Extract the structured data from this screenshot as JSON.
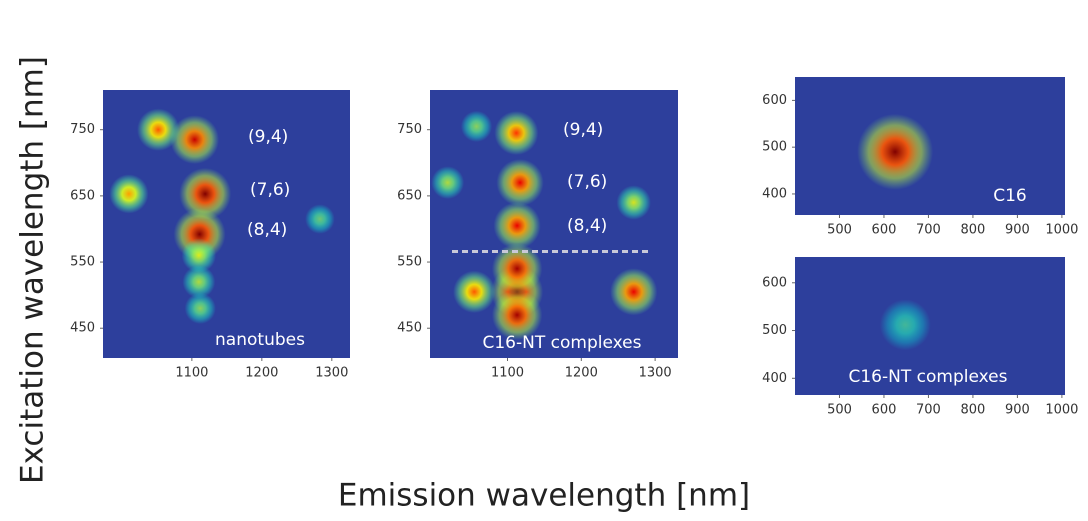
{
  "figure": {
    "xlabel": "Emission wavelength [nm]",
    "ylabel": "Excitation wavelength [nm]"
  },
  "chart_data": [
    {
      "type": "heatmap",
      "title": "nanotubes",
      "background": "#2d3f9c",
      "xlim": [
        973,
        1326
      ],
      "ylim": [
        405,
        810
      ],
      "xticks": [
        1100,
        1200,
        1300
      ],
      "yticks": [
        450,
        550,
        650,
        750
      ],
      "spots": {
        "x": [
          1104,
          1119,
          1111,
          1052,
          1010,
          1283,
          1110,
          1110,
          1112
        ],
        "y": [
          735,
          653,
          592,
          750,
          653,
          615,
          560,
          520,
          480
        ],
        "values": [
          0.9,
          1,
          1,
          0.7,
          0.6,
          0.3,
          0.45,
          0.4,
          0.35
        ]
      },
      "annotations": [
        "(9,4)",
        "(7,6)",
        "(8,4)"
      ]
    },
    {
      "type": "heatmap",
      "title": "C16-NT complexes",
      "background": "#2d3f9c",
      "xlim": [
        995,
        1331
      ],
      "ylim": [
        405,
        810
      ],
      "xticks": [
        1100,
        1200,
        1300
      ],
      "yticks": [
        450,
        550,
        650,
        750
      ],
      "spots": {
        "x": [
          1112,
          1117,
          1113,
          1113,
          1113,
          1113,
          1055,
          1271,
          1271,
          1019,
          1058
        ],
        "y": [
          745,
          670,
          605,
          505,
          470,
          540,
          505,
          505,
          640,
          670,
          755
        ],
        "values": [
          0.75,
          0.85,
          0.85,
          1,
          0.95,
          0.95,
          0.7,
          0.85,
          0.45,
          0.4,
          0.35
        ]
      },
      "reference_line": 566,
      "annotations": [
        "(9,4)",
        "(7,6)",
        "(8,4)"
      ]
    },
    {
      "type": "heatmap",
      "title": "C16",
      "background": "#2d3f9c",
      "xlim": [
        400,
        1007
      ],
      "ylim": [
        355,
        650
      ],
      "xticks": [
        500,
        600,
        700,
        800,
        900,
        1000
      ],
      "yticks": [
        400,
        500,
        600
      ],
      "spots": {
        "x": [
          625
        ],
        "y": [
          490
        ],
        "values": [
          1
        ]
      }
    },
    {
      "type": "heatmap",
      "title": "C16-NT complexes",
      "background": "#2d3f9c",
      "xlim": [
        400,
        1007
      ],
      "ylim": [
        365,
        654
      ],
      "xticks": [
        500,
        600,
        700,
        800,
        900,
        1000
      ],
      "yticks": [
        400,
        500,
        600
      ],
      "spots": {
        "x": [
          648
        ],
        "y": [
          512
        ],
        "values": [
          0.22
        ]
      }
    }
  ]
}
